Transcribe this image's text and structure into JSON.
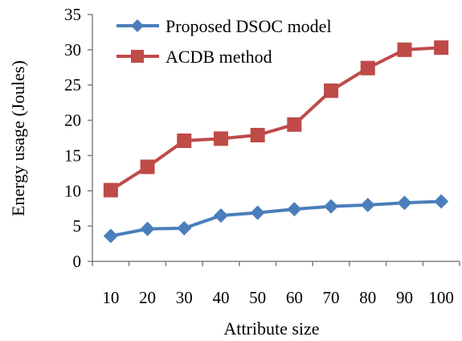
{
  "chart_data": {
    "type": "line",
    "title": "",
    "xlabel": "Attribute size",
    "ylabel": "Energy usage (Joules)",
    "categories": [
      "10",
      "20",
      "30",
      "40",
      "50",
      "60",
      "70",
      "80",
      "90",
      "100"
    ],
    "ylim": [
      0,
      35
    ],
    "yticks": [
      "0",
      "5",
      "10",
      "15",
      "20",
      "25",
      "30",
      "35"
    ],
    "grid": false,
    "legend_position": "top-left",
    "series": [
      {
        "name": "Proposed DSOC model",
        "marker": "diamond",
        "color": "#4A7EBB",
        "values": [
          3.6,
          4.6,
          4.7,
          6.5,
          6.9,
          7.4,
          7.8,
          8.0,
          8.3,
          8.5
        ]
      },
      {
        "name": "ACDB method",
        "marker": "square",
        "color": "#BE4B48",
        "values": [
          10.1,
          13.4,
          17.1,
          17.4,
          17.9,
          19.4,
          24.2,
          27.4,
          30.0,
          30.3
        ]
      }
    ]
  }
}
